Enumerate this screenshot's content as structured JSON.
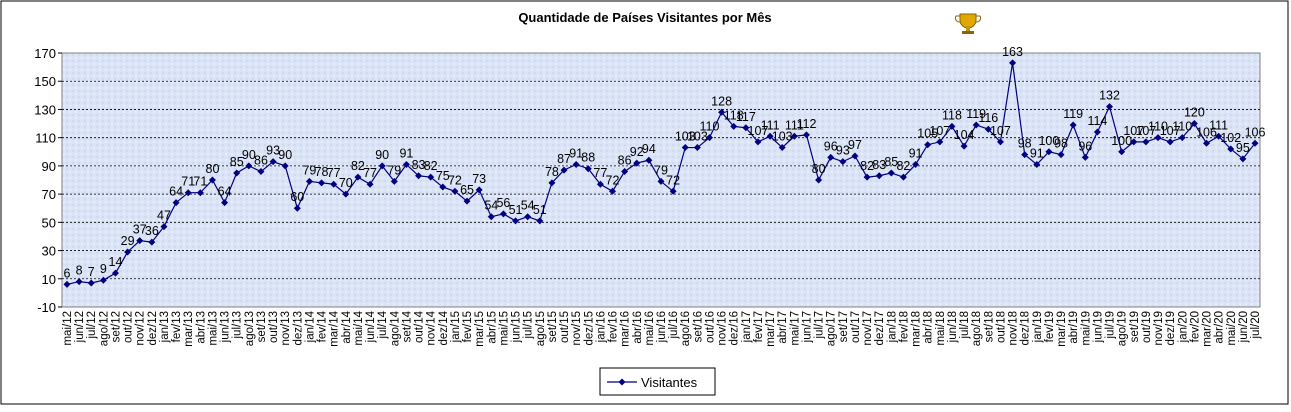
{
  "chart_data": {
    "type": "line",
    "title": "Quantidade de Países Visitantes por Mês",
    "categories": [
      "mai/12",
      "jun/12",
      "jul/12",
      "ago/12",
      "set/12",
      "out/12",
      "nov/12",
      "dez/12",
      "jan/13",
      "fev/13",
      "mar/13",
      "abr/13",
      "mai/13",
      "jun/13",
      "jul/13",
      "ago/13",
      "set/13",
      "out/13",
      "nov/13",
      "dez/13",
      "jan/14",
      "fev/14",
      "mar/14",
      "abr/14",
      "mai/14",
      "jun/14",
      "jul/14",
      "ago/14",
      "set/14",
      "out/14",
      "nov/14",
      "dez/14",
      "jan/15",
      "fev/15",
      "mar/15",
      "abr/15",
      "mai/15",
      "jun/15",
      "jul/15",
      "ago/15",
      "set/15",
      "out/15",
      "nov/15",
      "dez/15",
      "jan/16",
      "fev/16",
      "mar/16",
      "abr/16",
      "mai/16",
      "jun/16",
      "jul/16",
      "ago/16",
      "set/16",
      "out/16",
      "nov/16",
      "dez/16",
      "jan/17",
      "fev/17",
      "mar/17",
      "abr/17",
      "mai/17",
      "jun/17",
      "jul/17",
      "ago/17",
      "set/17",
      "out/17",
      "nov/17",
      "dez/17",
      "jan/18",
      "fev/18",
      "mar/18",
      "abr/18",
      "mai/18",
      "jun/18",
      "jul/18",
      "ago/18",
      "set/18",
      "out/18",
      "nov/18",
      "dez/18",
      "jan/19",
      "fev/19",
      "mar/19",
      "abr/19",
      "mai/19",
      "jun/19",
      "jul/19",
      "ago/19",
      "set/19",
      "out/19",
      "nov/19",
      "dez/19",
      "jan/20",
      "fev/20",
      "mar/20",
      "abr/20",
      "mai/20",
      "jun/20",
      "jul/20"
    ],
    "series": [
      {
        "name": "Visitantes",
        "color": "#000080",
        "values": [
          6,
          8,
          7,
          9,
          14,
          29,
          37,
          36,
          47,
          64,
          71,
          71,
          80,
          64,
          85,
          90,
          86,
          93,
          90,
          60,
          79,
          78,
          77,
          70,
          82,
          77,
          90,
          79,
          91,
          83,
          82,
          75,
          72,
          65,
          73,
          54,
          56,
          51,
          54,
          51,
          78,
          87,
          91,
          88,
          77,
          72,
          86,
          92,
          94,
          79,
          72,
          103,
          103,
          110,
          128,
          118,
          117,
          107,
          111,
          103,
          111,
          112,
          80,
          96,
          93,
          97,
          82,
          83,
          85,
          82,
          91,
          105,
          107,
          118,
          104,
          119,
          116,
          107,
          163,
          98,
          91,
          100,
          98,
          119,
          96,
          114,
          132,
          100,
          107,
          107,
          110,
          107,
          110,
          120,
          106,
          111,
          102,
          95,
          106
        ]
      }
    ],
    "ylim": [
      -10,
      170
    ],
    "yticks": [
      -10,
      10,
      30,
      50,
      70,
      90,
      110,
      130,
      150,
      170
    ],
    "grid": true,
    "legend": "bottom"
  }
}
